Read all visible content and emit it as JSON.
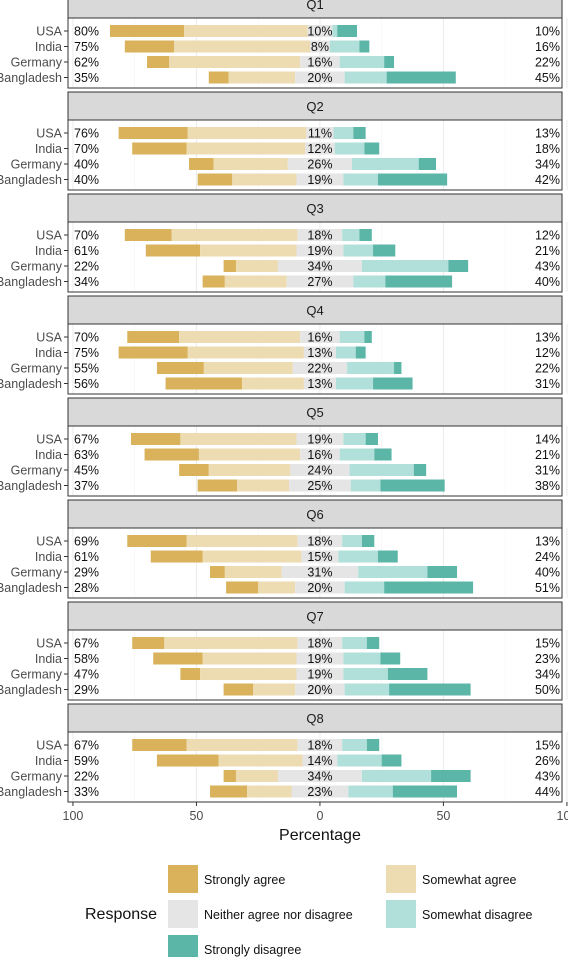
{
  "chart_data": {
    "type": "bar",
    "subtype": "diverging-stacked-likert",
    "x_label": "Percentage",
    "x_ticks": [
      {
        "value": -100,
        "label": "100"
      },
      {
        "value": -50,
        "label": "50"
      },
      {
        "value": 0,
        "label": "0"
      },
      {
        "value": 50,
        "label": "50"
      },
      {
        "value": 100,
        "label": "100"
      }
    ],
    "xlim": [
      -102,
      98
    ],
    "countries": [
      "USA",
      "India",
      "Germany",
      "Bangladesh"
    ],
    "legend_title": "Response",
    "legend_position": "bottom",
    "categories": [
      {
        "name": "Strongly agree",
        "color": "#D9B25B"
      },
      {
        "name": "Somewhat agree",
        "color": "#EDDBB1"
      },
      {
        "name": "Neither agree nor disagree",
        "color": "#E5E5E5"
      },
      {
        "name": "Somewhat disagree",
        "color": "#B1DFDA"
      },
      {
        "name": "Strongly disagree",
        "color": "#5BB6A8"
      }
    ],
    "panels": [
      {
        "title": "Q1",
        "rows": [
          {
            "country": "USA",
            "values": [
              30,
              50,
              10,
              2,
              8
            ],
            "agree_label": "80%",
            "neutral_label": "10%",
            "disagree_label": "10%"
          },
          {
            "country": "India",
            "values": [
              20,
              55,
              8,
              12,
              4
            ],
            "agree_label": "75%",
            "neutral_label": "8%",
            "disagree_label": "16%"
          },
          {
            "country": "Germany",
            "values": [
              9,
              53,
              16,
              18,
              4
            ],
            "agree_label": "62%",
            "neutral_label": "16%",
            "disagree_label": "22%"
          },
          {
            "country": "Bangladesh",
            "values": [
              8,
              27,
              20,
              17,
              28
            ],
            "agree_label": "35%",
            "neutral_label": "20%",
            "disagree_label": "45%"
          }
        ]
      },
      {
        "title": "Q2",
        "rows": [
          {
            "country": "USA",
            "values": [
              28,
              48,
              11,
              8,
              5
            ],
            "agree_label": "76%",
            "neutral_label": "11%",
            "disagree_label": "13%"
          },
          {
            "country": "India",
            "values": [
              22,
              48,
              12,
              12,
              6
            ],
            "agree_label": "70%",
            "neutral_label": "12%",
            "disagree_label": "18%"
          },
          {
            "country": "Germany",
            "values": [
              10,
              30,
              26,
              27,
              7
            ],
            "agree_label": "40%",
            "neutral_label": "26%",
            "disagree_label": "34%"
          },
          {
            "country": "Bangladesh",
            "values": [
              14,
              26,
              19,
              14,
              28
            ],
            "agree_label": "40%",
            "neutral_label": "19%",
            "disagree_label": "42%"
          }
        ]
      },
      {
        "title": "Q3",
        "rows": [
          {
            "country": "USA",
            "values": [
              19,
              51,
              18,
              7,
              5
            ],
            "agree_label": "70%",
            "neutral_label": "18%",
            "disagree_label": "12%"
          },
          {
            "country": "India",
            "values": [
              22,
              39,
              19,
              12,
              9
            ],
            "agree_label": "61%",
            "neutral_label": "19%",
            "disagree_label": "21%"
          },
          {
            "country": "Germany",
            "values": [
              5,
              17,
              34,
              35,
              8
            ],
            "agree_label": "22%",
            "neutral_label": "34%",
            "disagree_label": "43%"
          },
          {
            "country": "Bangladesh",
            "values": [
              9,
              25,
              27,
              13,
              27
            ],
            "agree_label": "34%",
            "neutral_label": "27%",
            "disagree_label": "40%"
          }
        ]
      },
      {
        "title": "Q4",
        "rows": [
          {
            "country": "USA",
            "values": [
              21,
              49,
              16,
              10,
              3
            ],
            "agree_label": "70%",
            "neutral_label": "16%",
            "disagree_label": "13%"
          },
          {
            "country": "India",
            "values": [
              28,
              47,
              13,
              8,
              4
            ],
            "agree_label": "75%",
            "neutral_label": "13%",
            "disagree_label": "12%"
          },
          {
            "country": "Germany",
            "values": [
              19,
              36,
              22,
              19,
              3
            ],
            "agree_label": "55%",
            "neutral_label": "22%",
            "disagree_label": "22%"
          },
          {
            "country": "Bangladesh",
            "values": [
              31,
              25,
              13,
              15,
              16
            ],
            "agree_label": "56%",
            "neutral_label": "13%",
            "disagree_label": "31%"
          }
        ]
      },
      {
        "title": "Q5",
        "rows": [
          {
            "country": "USA",
            "values": [
              20,
              47,
              19,
              9,
              5
            ],
            "agree_label": "67%",
            "neutral_label": "19%",
            "disagree_label": "14%"
          },
          {
            "country": "India",
            "values": [
              22,
              41,
              16,
              14,
              7
            ],
            "agree_label": "63%",
            "neutral_label": "16%",
            "disagree_label": "21%"
          },
          {
            "country": "Germany",
            "values": [
              12,
              33,
              24,
              26,
              5
            ],
            "agree_label": "45%",
            "neutral_label": "24%",
            "disagree_label": "31%"
          },
          {
            "country": "Bangladesh",
            "values": [
              16,
              21,
              25,
              12,
              26
            ],
            "agree_label": "37%",
            "neutral_label": "25%",
            "disagree_label": "38%"
          }
        ]
      },
      {
        "title": "Q6",
        "rows": [
          {
            "country": "USA",
            "values": [
              24,
              45,
              18,
              8,
              5
            ],
            "agree_label": "69%",
            "neutral_label": "18%",
            "disagree_label": "13%"
          },
          {
            "country": "India",
            "values": [
              21,
              40,
              15,
              16,
              8
            ],
            "agree_label": "61%",
            "neutral_label": "15%",
            "disagree_label": "24%"
          },
          {
            "country": "Germany",
            "values": [
              6,
              23,
              31,
              28,
              12
            ],
            "agree_label": "29%",
            "neutral_label": "31%",
            "disagree_label": "40%"
          },
          {
            "country": "Bangladesh",
            "values": [
              13,
              15,
              20,
              16,
              36
            ],
            "agree_label": "28%",
            "neutral_label": "20%",
            "disagree_label": "51%"
          }
        ]
      },
      {
        "title": "Q7",
        "rows": [
          {
            "country": "USA",
            "values": [
              13,
              54,
              18,
              10,
              5
            ],
            "agree_label": "67%",
            "neutral_label": "18%",
            "disagree_label": "15%"
          },
          {
            "country": "India",
            "values": [
              20,
              38,
              19,
              15,
              8
            ],
            "agree_label": "58%",
            "neutral_label": "19%",
            "disagree_label": "23%"
          },
          {
            "country": "Germany",
            "values": [
              8,
              39,
              19,
              18,
              16
            ],
            "agree_label": "47%",
            "neutral_label": "19%",
            "disagree_label": "34%"
          },
          {
            "country": "Bangladesh",
            "values": [
              12,
              17,
              20,
              18,
              33
            ],
            "agree_label": "29%",
            "neutral_label": "20%",
            "disagree_label": "50%"
          }
        ]
      },
      {
        "title": "Q8",
        "rows": [
          {
            "country": "USA",
            "values": [
              22,
              45,
              18,
              10,
              5
            ],
            "agree_label": "67%",
            "neutral_label": "18%",
            "disagree_label": "15%"
          },
          {
            "country": "India",
            "values": [
              25,
              34,
              14,
              18,
              8
            ],
            "agree_label": "59%",
            "neutral_label": "14%",
            "disagree_label": "26%"
          },
          {
            "country": "Germany",
            "values": [
              5,
              17,
              34,
              28,
              16
            ],
            "agree_label": "22%",
            "neutral_label": "34%",
            "disagree_label": "43%"
          },
          {
            "country": "Bangladesh",
            "values": [
              15,
              18,
              23,
              18,
              26
            ],
            "agree_label": "33%",
            "neutral_label": "23%",
            "disagree_label": "44%"
          }
        ]
      }
    ]
  }
}
